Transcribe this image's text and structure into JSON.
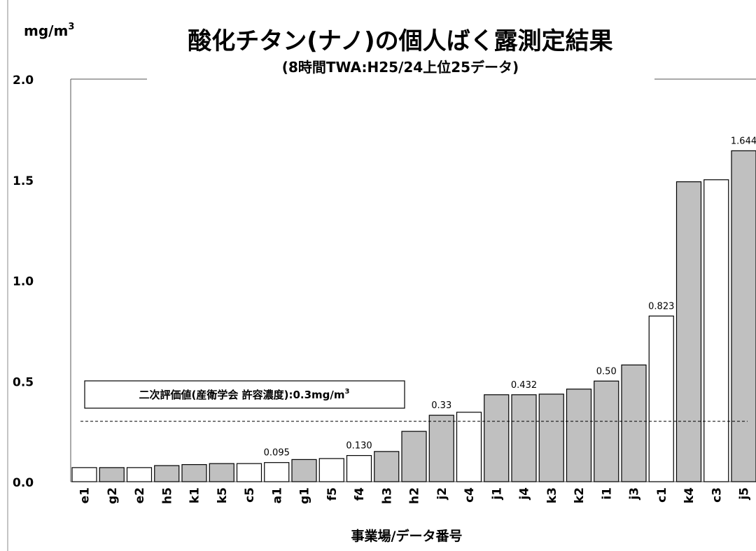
{
  "chart_data": {
    "type": "bar",
    "title": "酸化チタン(ナノ)の個人ばく露測定結果",
    "subtitle": "(8時間TWA:H25/24上位25データ)",
    "ylabel_base": "mg/m",
    "ylabel_sup": "3",
    "xlabel": "事業場/データ番号",
    "ylim": [
      0,
      2.0
    ],
    "yticks": [
      {
        "value": 0.0,
        "label": "0.0"
      },
      {
        "value": 0.5,
        "label": "0.5"
      },
      {
        "value": 1.0,
        "label": "1.0"
      },
      {
        "value": 1.5,
        "label": "1.5"
      },
      {
        "value": 2.0,
        "label": "2.0"
      }
    ],
    "colors": {
      "gray": "#c0c0c0",
      "white": "#ffffff",
      "stroke": "#000000"
    },
    "bars": [
      {
        "category": "e1",
        "value": 0.07,
        "fill": "white",
        "label": ""
      },
      {
        "category": "g2",
        "value": 0.07,
        "fill": "gray",
        "label": ""
      },
      {
        "category": "e2",
        "value": 0.07,
        "fill": "white",
        "label": ""
      },
      {
        "category": "h5",
        "value": 0.08,
        "fill": "gray",
        "label": ""
      },
      {
        "category": "k1",
        "value": 0.085,
        "fill": "gray",
        "label": ""
      },
      {
        "category": "k5",
        "value": 0.09,
        "fill": "gray",
        "label": ""
      },
      {
        "category": "c5",
        "value": 0.09,
        "fill": "white",
        "label": ""
      },
      {
        "category": "a1",
        "value": 0.095,
        "fill": "white",
        "label": "0.095"
      },
      {
        "category": "g1",
        "value": 0.11,
        "fill": "gray",
        "label": ""
      },
      {
        "category": "f5",
        "value": 0.115,
        "fill": "white",
        "label": ""
      },
      {
        "category": "f4",
        "value": 0.13,
        "fill": "white",
        "label": "0.130"
      },
      {
        "category": "h3",
        "value": 0.15,
        "fill": "gray",
        "label": ""
      },
      {
        "category": "h2",
        "value": 0.25,
        "fill": "gray",
        "label": ""
      },
      {
        "category": "j2",
        "value": 0.33,
        "fill": "gray",
        "label": "0.33"
      },
      {
        "category": "c4",
        "value": 0.345,
        "fill": "white",
        "label": ""
      },
      {
        "category": "j1",
        "value": 0.432,
        "fill": "gray",
        "label": ""
      },
      {
        "category": "j4",
        "value": 0.432,
        "fill": "gray",
        "label": "0.432"
      },
      {
        "category": "k3",
        "value": 0.435,
        "fill": "gray",
        "label": ""
      },
      {
        "category": "k2",
        "value": 0.46,
        "fill": "gray",
        "label": ""
      },
      {
        "category": "i1",
        "value": 0.5,
        "fill": "gray",
        "label": "0.50"
      },
      {
        "category": "j3",
        "value": 0.58,
        "fill": "gray",
        "label": ""
      },
      {
        "category": "c1",
        "value": 0.823,
        "fill": "white",
        "label": "0.823"
      },
      {
        "category": "k4",
        "value": 1.49,
        "fill": "gray",
        "label": ""
      },
      {
        "category": "c3",
        "value": 1.5,
        "fill": "white",
        "label": ""
      },
      {
        "category": "j5",
        "value": 1.644,
        "fill": "gray",
        "label": "1.644"
      }
    ],
    "reference_line": {
      "value": 0.3,
      "label_base": "二次評価値(産衛学会 許容濃度):0.3mg/m",
      "label_sup": "3"
    }
  }
}
